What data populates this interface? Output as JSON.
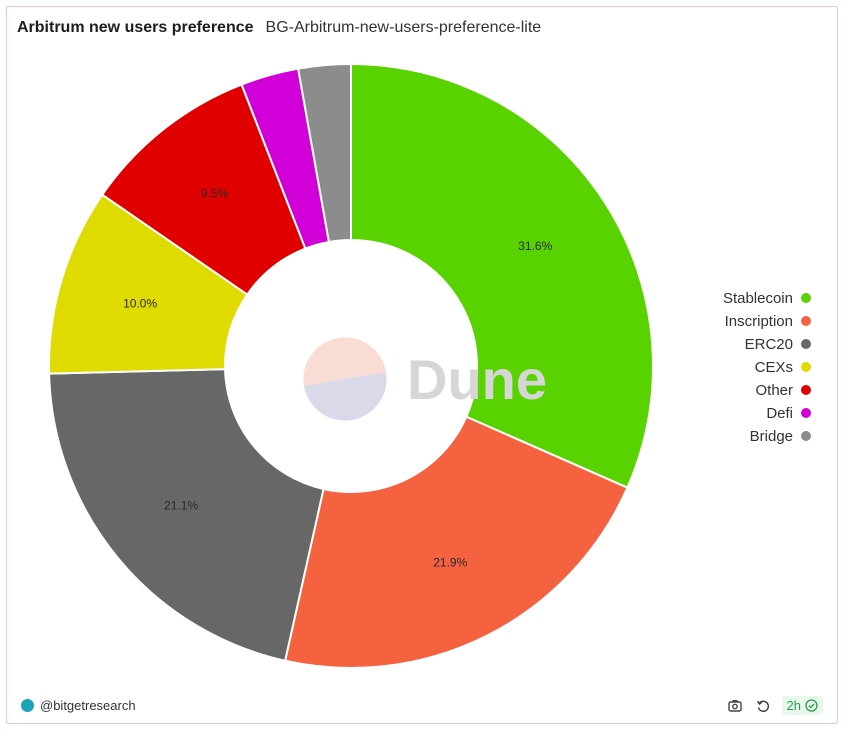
{
  "header": {
    "title": "Arbitrum new users preference",
    "subtitle": "BG-Arbitrum-new-users-preference-lite"
  },
  "watermark": {
    "text": "Dune"
  },
  "footer": {
    "user": "@bitgetresearch",
    "refresh_badge": "2h"
  },
  "icons": {
    "screenshot": "camera-icon",
    "refresh": "refresh-icon",
    "status": "check-circle-icon"
  },
  "chart_data": {
    "type": "pie",
    "style": "donut",
    "title": "Arbitrum new users preference",
    "legend_position": "right",
    "series": [
      {
        "name": "Stablecoin",
        "value": 31.6,
        "label": "31.6%",
        "color": "#59d300"
      },
      {
        "name": "Inscription",
        "value": 21.9,
        "label": "21.9%",
        "color": "#f46240"
      },
      {
        "name": "ERC20",
        "value": 21.1,
        "label": "21.1%",
        "color": "#676767"
      },
      {
        "name": "CEXs",
        "value": 10.0,
        "label": "10.0%",
        "color": "#dfdb00"
      },
      {
        "name": "Other",
        "value": 9.5,
        "label": "9.5%",
        "color": "#e00000"
      },
      {
        "name": "Defi",
        "value": 3.1,
        "label": "",
        "color": "#d200d8"
      },
      {
        "name": "Bridge",
        "value": 2.8,
        "label": "",
        "color": "#8c8c8c"
      }
    ]
  }
}
